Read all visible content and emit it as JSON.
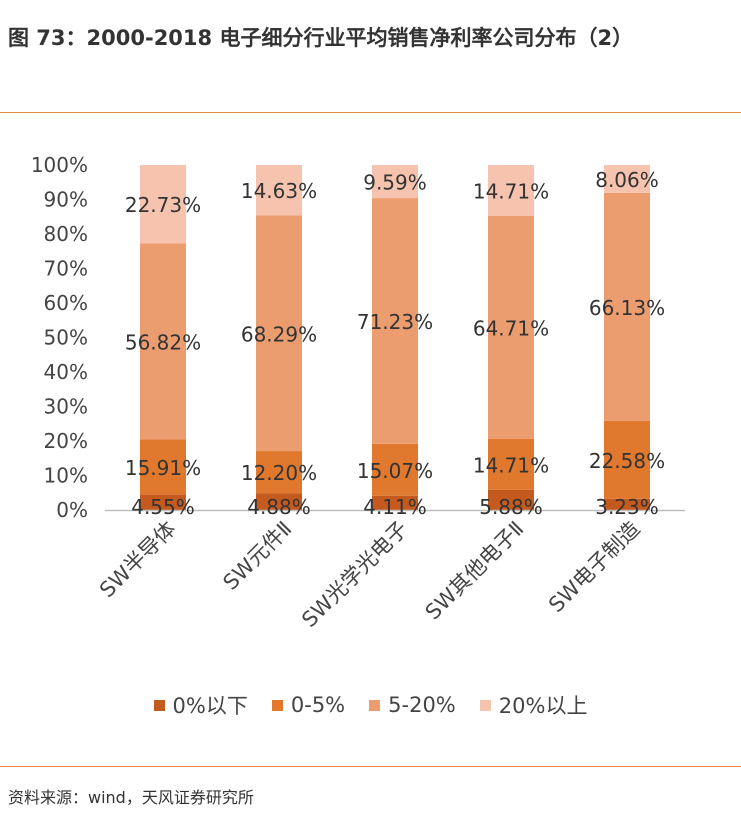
{
  "header": {
    "title": "图 73：2000-2018 电子细分行业平均销售净利率公司分布（2）"
  },
  "footer": {
    "source": "资料来源：wind，天风证券研究所"
  },
  "colors": {
    "s1": "#c55a1e",
    "s2": "#e0782e",
    "s3": "#ec9d70",
    "s4": "#f6c4ae",
    "axis": "#bfbfbf",
    "text": "#444444",
    "rule": "#e58a3c"
  },
  "chart_data": {
    "type": "bar",
    "stacked": true,
    "categories": [
      "SW半导体",
      "SW元件Ⅱ",
      "SW光学光电子",
      "SW其他电子Ⅱ",
      "SW电子制造"
    ],
    "series": [
      {
        "name": "0%以下",
        "values": [
          4.55,
          4.88,
          4.11,
          5.88,
          3.23
        ],
        "labels": [
          "4.55%",
          "4.88%",
          "4.11%",
          "5.88%",
          "3.23%"
        ]
      },
      {
        "name": "0-5%",
        "values": [
          15.91,
          12.2,
          15.07,
          14.71,
          22.58
        ],
        "labels": [
          "15.91%",
          "12.20%",
          "15.07%",
          "14.71%",
          "22.58%"
        ]
      },
      {
        "name": "5-20%",
        "values": [
          56.82,
          68.29,
          71.23,
          64.71,
          66.13
        ],
        "labels": [
          "56.82%",
          "68.29%",
          "71.23%",
          "64.71%",
          "66.13%"
        ]
      },
      {
        "name": "20%以上",
        "values": [
          22.73,
          14.63,
          9.59,
          14.71,
          8.06
        ],
        "labels": [
          "22.73%",
          "14.63%",
          "9.59%",
          "14.71%",
          "8.06%"
        ]
      }
    ],
    "yticks": [
      "0%",
      "10%",
      "20%",
      "30%",
      "40%",
      "50%",
      "60%",
      "70%",
      "80%",
      "90%",
      "100%"
    ],
    "ylim": [
      0,
      100
    ],
    "legend_position": "bottom",
    "grid": false
  }
}
